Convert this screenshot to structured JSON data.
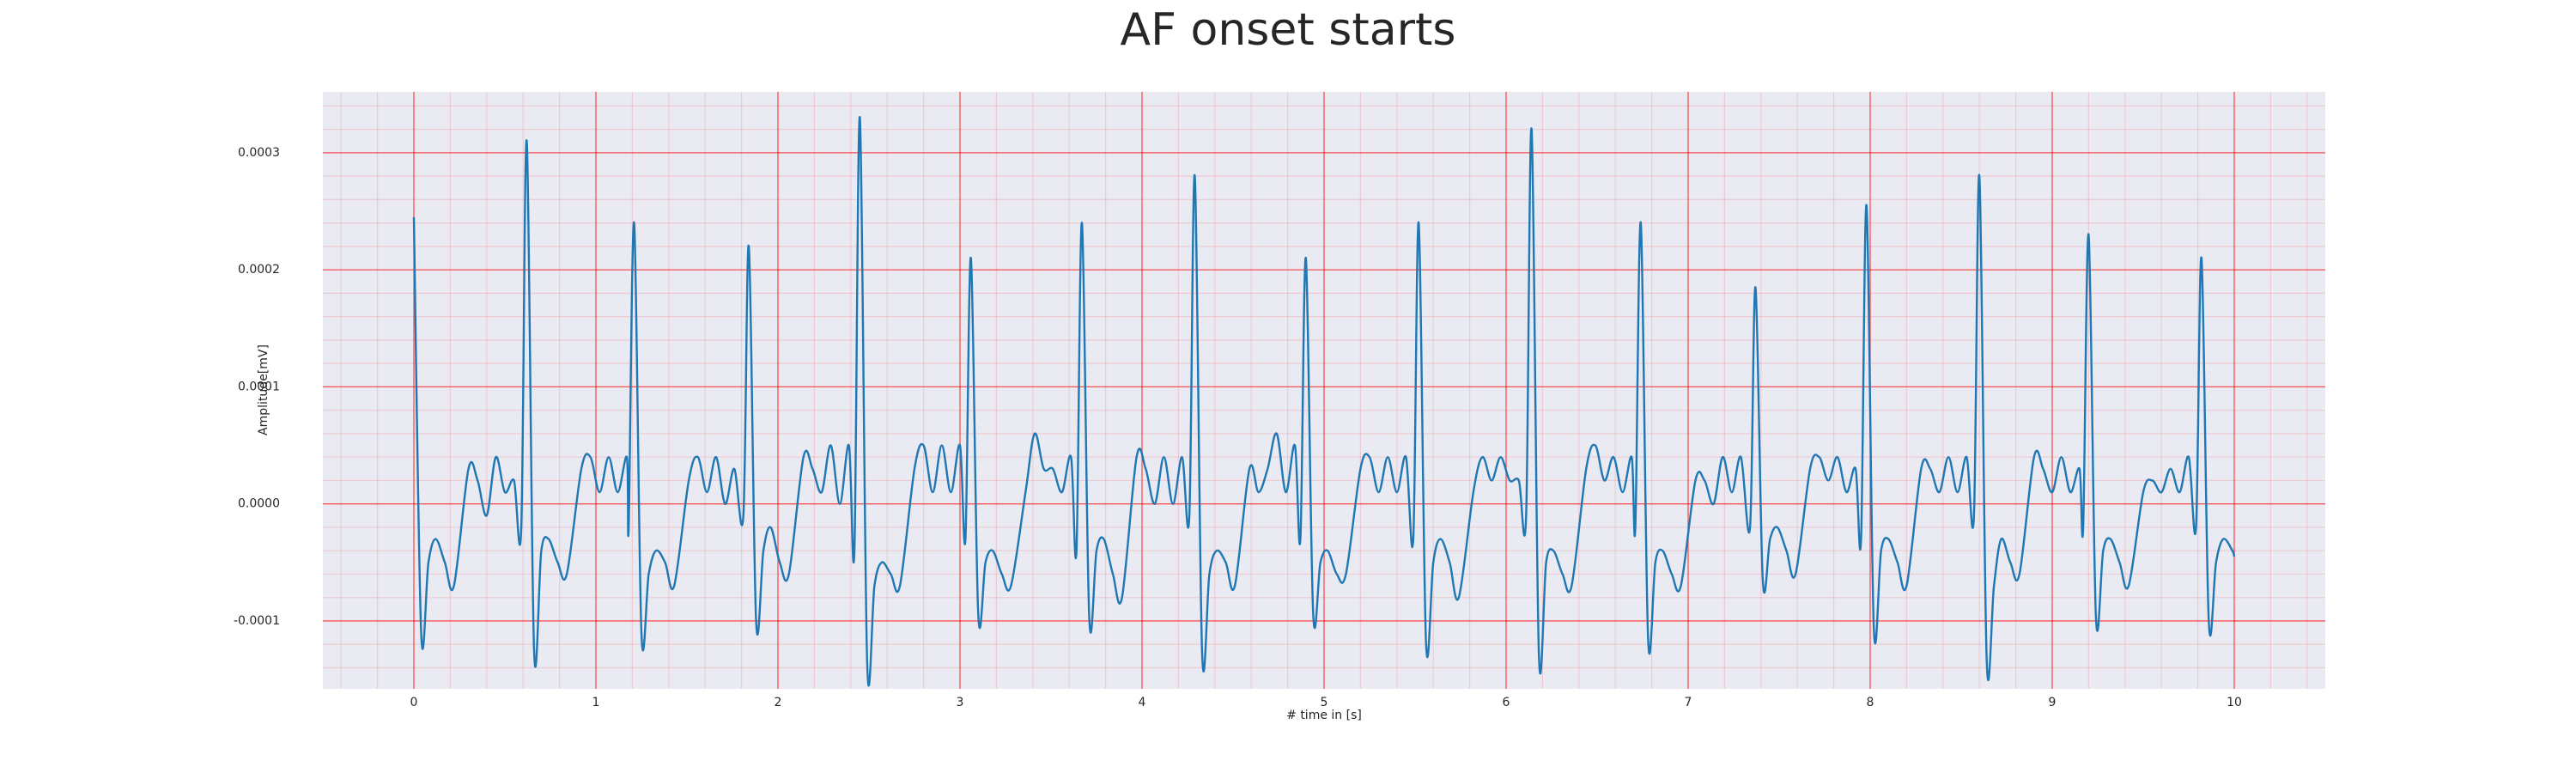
{
  "chart_data": {
    "type": "line",
    "title": "AF onset starts",
    "xlabel": "# time in [s]",
    "ylabel": "Amplitude[mV]",
    "xlim": [
      -0.5,
      10.5
    ],
    "ylim": [
      -0.000158,
      0.000352
    ],
    "xticks": [
      0,
      1,
      2,
      3,
      4,
      5,
      6,
      7,
      8,
      9,
      10
    ],
    "yticks": [
      -0.0001,
      {
        "value": 0,
        "label": "0.0000"
      },
      0.0001,
      0.0002,
      0.0003
    ],
    "grid": true,
    "minor_grid": true,
    "background": "#eaeaf2",
    "grid_color": "#ff0000",
    "series": [
      {
        "color": "#1f77b4",
        "x": [
          0,
          0.04,
          0.08,
          0.12,
          0.17,
          0.22,
          0.3,
          0.35,
          0.4,
          0.45,
          0.5,
          0.55,
          0.59,
          0.62,
          0.66,
          0.7,
          0.74,
          0.79,
          0.84,
          0.92,
          0.97,
          1.02,
          1.07,
          1.12,
          1.17,
          1.18,
          1.21,
          1.25,
          1.29,
          1.33,
          1.38,
          1.43,
          1.51,
          1.56,
          1.61,
          1.66,
          1.71,
          1.76,
          1.81,
          1.84,
          1.88,
          1.92,
          1.96,
          2.01,
          2.06,
          2.14,
          2.19,
          2.24,
          2.29,
          2.34,
          2.39,
          2.42,
          2.45,
          2.49,
          2.53,
          2.57,
          2.62,
          2.67,
          2.75,
          2.8,
          2.85,
          2.9,
          2.95,
          3.0,
          3.03,
          3.06,
          3.1,
          3.14,
          3.18,
          3.23,
          3.28,
          3.36,
          3.41,
          3.46,
          3.51,
          3.56,
          3.61,
          3.64,
          3.67,
          3.71,
          3.75,
          3.79,
          3.84,
          3.89,
          3.97,
          4.02,
          4.07,
          4.12,
          4.17,
          4.22,
          4.26,
          4.29,
          4.33,
          4.37,
          4.41,
          4.46,
          4.51,
          4.59,
          4.64,
          4.69,
          4.74,
          4.79,
          4.84,
          4.87,
          4.9,
          4.94,
          4.98,
          5.02,
          5.07,
          5.12,
          5.2,
          5.25,
          5.3,
          5.35,
          5.4,
          5.45,
          5.49,
          5.52,
          5.56,
          5.6,
          5.64,
          5.69,
          5.74,
          5.82,
          5.87,
          5.92,
          5.97,
          6.02,
          6.07,
          6.11,
          6.14,
          6.18,
          6.22,
          6.26,
          6.31,
          6.36,
          6.44,
          6.49,
          6.54,
          6.59,
          6.64,
          6.69,
          6.71,
          6.74,
          6.78,
          6.82,
          6.86,
          6.91,
          6.96,
          7.04,
          7.09,
          7.14,
          7.19,
          7.24,
          7.29,
          7.34,
          7.37,
          7.41,
          7.45,
          7.49,
          7.54,
          7.59,
          7.67,
          7.72,
          7.77,
          7.82,
          7.87,
          7.92,
          7.95,
          7.98,
          8.02,
          8.06,
          8.1,
          8.15,
          8.2,
          8.28,
          8.33,
          8.38,
          8.43,
          8.48,
          8.53,
          8.57,
          8.6,
          8.64,
          8.68,
          8.72,
          8.77,
          8.82,
          8.9,
          8.95,
          9.0,
          9.05,
          9.1,
          9.15,
          9.17,
          9.2,
          9.24,
          9.28,
          9.32,
          9.37,
          9.42,
          9.5,
          9.55,
          9.6,
          9.65,
          9.7,
          9.75,
          9.79,
          9.82,
          9.86,
          9.9,
          9.94,
          9.99,
          10.0
        ],
        "values": [
          0.000245,
          -0.00011,
          -5e-05,
          -3e-05,
          -5e-05,
          -7e-05,
          3e-05,
          2e-05,
          -1e-05,
          4e-05,
          1e-05,
          2e-05,
          -2e-05,
          0.00031,
          -0.000124,
          -4e-05,
          -3e-05,
          -5e-05,
          -6e-05,
          3e-05,
          4e-05,
          1e-05,
          4e-05,
          1e-05,
          4e-05,
          -2e-05,
          0.00024,
          -0.00011,
          -6e-05,
          -4e-05,
          -5e-05,
          -7e-05,
          2e-05,
          4e-05,
          1e-05,
          4e-05,
          0,
          3e-05,
          -1e-05,
          0.00022,
          -0.0001,
          -4e-05,
          -2e-05,
          -5e-05,
          -6e-05,
          4e-05,
          3e-05,
          1e-05,
          5e-05,
          0,
          5e-05,
          -4e-05,
          0.00033,
          -0.000135,
          -7e-05,
          -5e-05,
          -6e-05,
          -7e-05,
          3e-05,
          5e-05,
          1e-05,
          5e-05,
          1e-05,
          5e-05,
          -3e-05,
          0.00021,
          -9.3e-05,
          -5e-05,
          -4e-05,
          -6e-05,
          -7e-05,
          1e-05,
          6e-05,
          3e-05,
          3e-05,
          1e-05,
          4e-05,
          -4e-05,
          0.00024,
          -9.7e-05,
          -4e-05,
          -3e-05,
          -6e-05,
          -8e-05,
          4e-05,
          3e-05,
          0,
          4e-05,
          0,
          4e-05,
          -1e-05,
          0.00028,
          -0.000127,
          -6e-05,
          -4e-05,
          -5e-05,
          -7e-05,
          3e-05,
          1e-05,
          3e-05,
          6e-05,
          1e-05,
          5e-05,
          -3e-05,
          0.00021,
          -9.3e-05,
          -5e-05,
          -4e-05,
          -6e-05,
          -6e-05,
          3e-05,
          4e-05,
          1e-05,
          4e-05,
          1e-05,
          4e-05,
          -3e-05,
          0.00024,
          -0.000118,
          -5e-05,
          -3e-05,
          -5e-05,
          -8e-05,
          1e-05,
          4e-05,
          2e-05,
          4e-05,
          2e-05,
          2e-05,
          -1e-05,
          0.00032,
          -0.000128,
          -5e-05,
          -4e-05,
          -6e-05,
          -7e-05,
          3e-05,
          5e-05,
          2e-05,
          4e-05,
          1e-05,
          4e-05,
          -2e-05,
          0.00024,
          -0.000115,
          -5e-05,
          -4e-05,
          -6e-05,
          -7e-05,
          2e-05,
          2e-05,
          0,
          4e-05,
          1e-05,
          4e-05,
          -2e-05,
          0.000185,
          -6.5e-05,
          -3e-05,
          -2e-05,
          -4e-05,
          -6e-05,
          3e-05,
          4e-05,
          2e-05,
          4e-05,
          1e-05,
          3e-05,
          -3e-05,
          0.000255,
          -0.000106,
          -4e-05,
          -3e-05,
          -5e-05,
          -7e-05,
          3e-05,
          3e-05,
          1e-05,
          4e-05,
          1e-05,
          4e-05,
          -1e-05,
          0.00028,
          -0.000133,
          -7e-05,
          -3e-05,
          -5e-05,
          -6e-05,
          4e-05,
          3e-05,
          1e-05,
          4e-05,
          1e-05,
          3e-05,
          -2e-05,
          0.00023,
          -9.6e-05,
          -4e-05,
          -3e-05,
          -5e-05,
          -7e-05,
          1e-05,
          2e-05,
          1e-05,
          3e-05,
          1e-05,
          4e-05,
          -2e-05,
          0.00021,
          -0.0001,
          -5e-05,
          -3e-05,
          -4e-05,
          -4.5e-05
        ]
      }
    ]
  }
}
